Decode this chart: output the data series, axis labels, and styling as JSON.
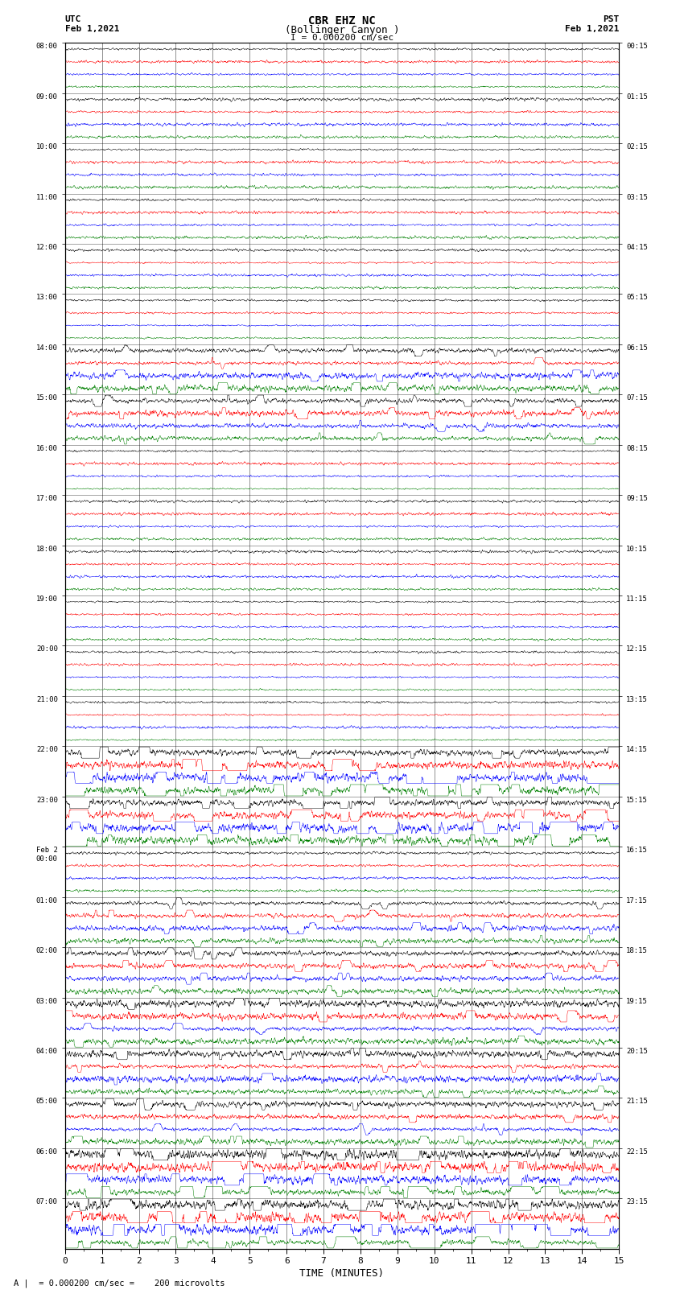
{
  "title_line1": "CBR EHZ NC",
  "title_line2": "(Bollinger Canyon )",
  "title_line3": "I = 0.000200 cm/sec",
  "left_top_label1": "UTC",
  "left_top_label2": "Feb 1,2021",
  "right_top_label1": "PST",
  "right_top_label2": "Feb 1,2021",
  "xlabel": "TIME (MINUTES)",
  "bottom_label": "A |  = 0.000200 cm/sec =    200 microvolts",
  "utc_times_labeled": [
    "08:00",
    "09:00",
    "10:00",
    "11:00",
    "12:00",
    "13:00",
    "14:00",
    "15:00",
    "16:00",
    "17:00",
    "18:00",
    "19:00",
    "20:00",
    "21:00",
    "22:00",
    "23:00",
    "Feb 2\n00:00",
    "01:00",
    "02:00",
    "03:00",
    "04:00",
    "05:00",
    "06:00",
    "07:00"
  ],
  "pst_times_labeled": [
    "00:15",
    "01:15",
    "02:15",
    "03:15",
    "04:15",
    "05:15",
    "06:15",
    "07:15",
    "08:15",
    "09:15",
    "10:15",
    "11:15",
    "12:15",
    "13:15",
    "14:15",
    "15:15",
    "16:15",
    "17:15",
    "18:15",
    "19:15",
    "20:15",
    "21:15",
    "22:15",
    "23:15"
  ],
  "num_hour_rows": 24,
  "traces_per_row": 4,
  "colors": [
    "black",
    "red",
    "blue",
    "green"
  ],
  "xmin": 0,
  "xmax": 15,
  "background_color": "white",
  "seed": 42,
  "high_activity_rows": [
    6,
    7,
    14,
    15,
    17,
    18,
    19,
    20,
    21,
    22,
    23
  ],
  "very_high_rows": [
    14,
    15,
    22,
    23
  ]
}
